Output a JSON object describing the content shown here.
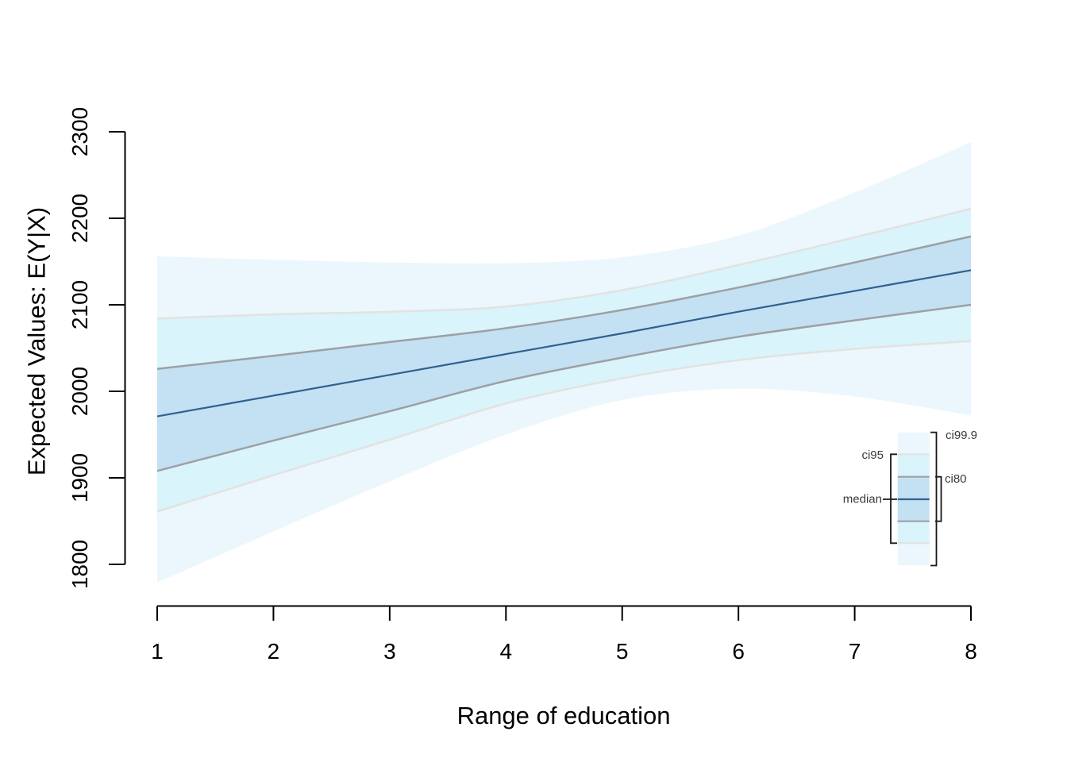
{
  "chart_data": {
    "type": "area",
    "title": "",
    "xlabel": "Range of education",
    "ylabel": "Expected Values: E(Y|X)",
    "xlim": [
      1,
      8
    ],
    "ylim": [
      1800,
      2300
    ],
    "x_ticks": [
      1,
      2,
      3,
      4,
      5,
      6,
      7,
      8
    ],
    "y_ticks": [
      1800,
      1900,
      2000,
      2100,
      2200,
      2300
    ],
    "grid": false,
    "x": [
      1,
      2,
      3,
      4,
      5,
      6,
      7,
      8
    ],
    "series": [
      {
        "name": "ci99.9 upper",
        "values": [
          2156,
          2152,
          2149,
          2148,
          2155,
          2180,
          2230,
          2288
        ]
      },
      {
        "name": "ci99.9 lower",
        "values": [
          1779,
          1838,
          1896,
          1950,
          1990,
          2003,
          1994,
          1972
        ]
      },
      {
        "name": "ci95 upper",
        "values": [
          2084,
          2089,
          2092,
          2098,
          2117,
          2146,
          2178,
          2211
        ]
      },
      {
        "name": "ci95 lower",
        "values": [
          1861,
          1903,
          1944,
          1986,
          2015,
          2036,
          2049,
          2058
        ]
      },
      {
        "name": "ci80 upper",
        "values": [
          2026,
          2041,
          2057,
          2073,
          2094,
          2120,
          2149,
          2179
        ]
      },
      {
        "name": "ci80 lower",
        "values": [
          1908,
          1943,
          1977,
          2012,
          2039,
          2063,
          2082,
          2100
        ]
      },
      {
        "name": "median",
        "values": [
          1971,
          1995,
          2019,
          2043,
          2067,
          2092,
          2116,
          2140
        ]
      }
    ],
    "legend": {
      "position": "bottom-right",
      "items": [
        {
          "label": "ci99.9"
        },
        {
          "label": "ci95"
        },
        {
          "label": "ci80"
        },
        {
          "label": "median"
        }
      ]
    },
    "colors": {
      "ci999_fill": "#EBF7FC",
      "ci95_fill": "#D9F4FB",
      "ci80_fill": "#C3E1F3",
      "ci95_line": "#E3E2E0",
      "ci80_line": "#9EA0A2",
      "median_line": "#2F618E",
      "axis": "#000000",
      "bracket": "#1A1A1A",
      "legend_text": "#3A3A3A"
    }
  }
}
